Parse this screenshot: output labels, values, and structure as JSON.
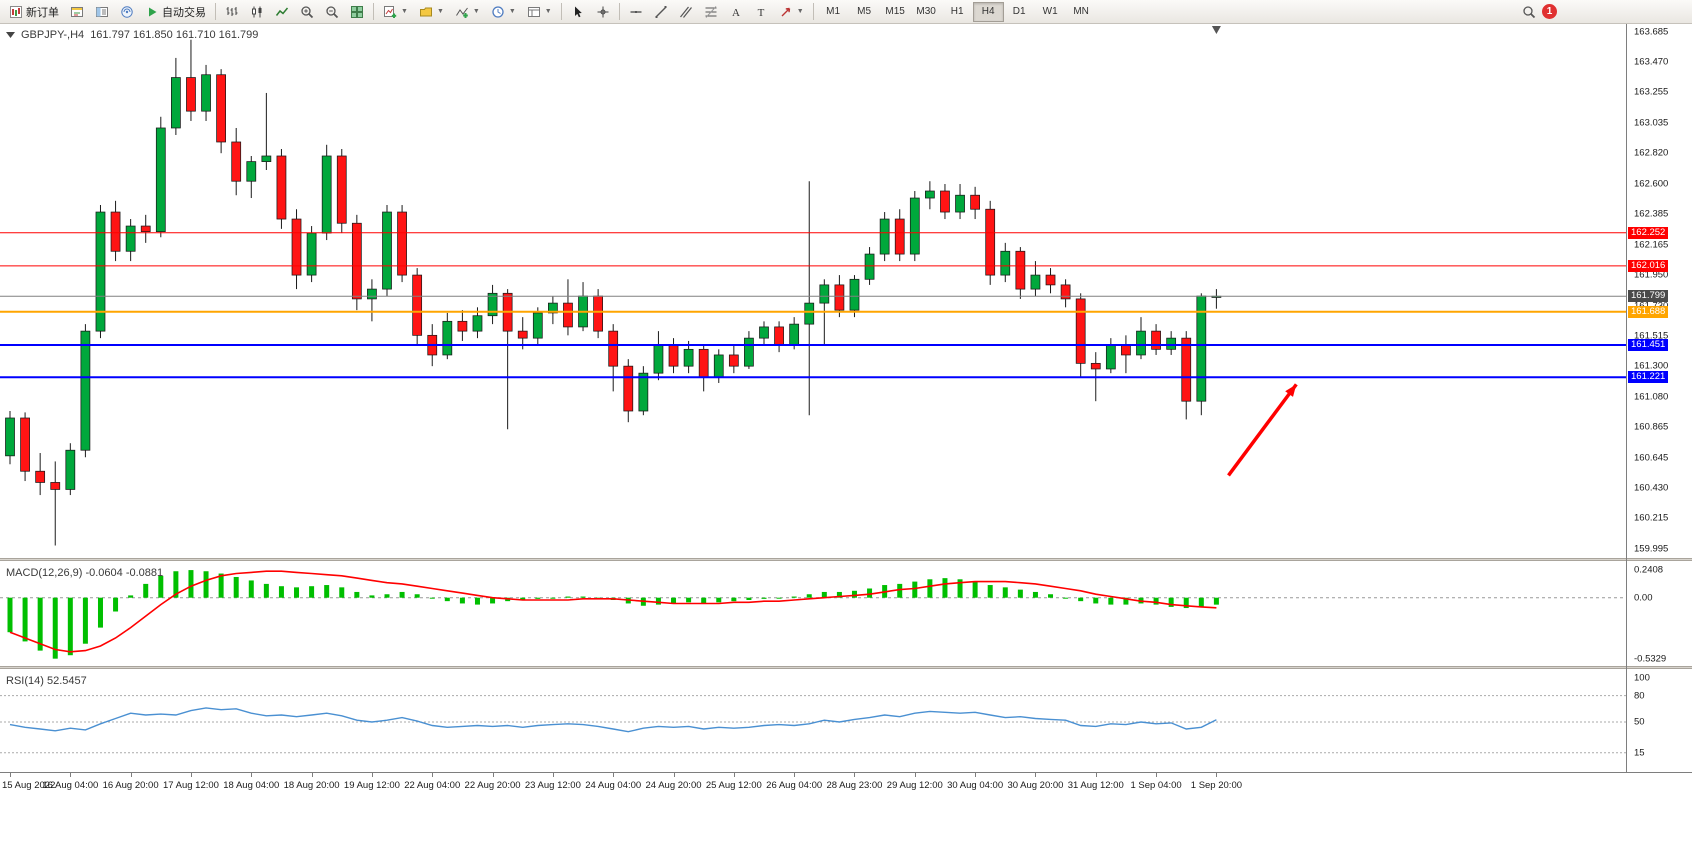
{
  "toolbar": {
    "new_order_label": "新订单",
    "auto_trading_label": "自动交易",
    "timeframes": [
      "M1",
      "M5",
      "M15",
      "M30",
      "H1",
      "H4",
      "D1",
      "W1",
      "MN"
    ],
    "active_timeframe": "H4",
    "notification_badge": "1"
  },
  "chart": {
    "symbol_period": "GBPJPY-,H4",
    "ohlc_text": "161.797 161.850 161.710 161.799",
    "macd_label": "MACD(12,26,9) -0.0604 -0.0881",
    "rsi_label": "RSI(14) 52.5457"
  },
  "chart_data": {
    "type": "candlestick",
    "symbol": "GBPJPY-",
    "period": "H4",
    "current_ohlc": {
      "open": 161.797,
      "high": 161.85,
      "low": 161.71,
      "close": 161.799
    },
    "price_axis": {
      "top_value": 163.685,
      "bottom_value": 159.995,
      "labels": [
        "163.685",
        "163.470",
        "163.255",
        "163.035",
        "162.820",
        "162.600",
        "162.385",
        "162.165",
        "161.950",
        "161.730",
        "161.515",
        "161.300",
        "161.080",
        "160.865",
        "160.645",
        "160.430",
        "160.215",
        "159.995"
      ]
    },
    "horizontal_lines": [
      {
        "name": "resistance-line-1",
        "price": 162.252,
        "label": "162.252",
        "color": "#ff0000",
        "width": 1,
        "tag_bg": "#ff0000"
      },
      {
        "name": "resistance-line-2",
        "price": 162.016,
        "label": "162.016",
        "color": "#ff0000",
        "width": 1,
        "tag_bg": "#ff0000"
      },
      {
        "name": "bid-price-line",
        "price": 161.799,
        "label": "161.799",
        "color": "#808080",
        "width": 1,
        "tag_bg": "#4a4a4a"
      },
      {
        "name": "pivot-line-orange",
        "price": 161.688,
        "label": "161.688",
        "color": "#ffa500",
        "width": 2,
        "tag_bg": "#ffa500"
      },
      {
        "name": "support-line-1",
        "price": 161.451,
        "label": "161.451",
        "color": "#0000ff",
        "width": 2,
        "tag_bg": "#0000ff"
      },
      {
        "name": "support-line-2",
        "price": 161.221,
        "label": "161.221",
        "color": "#0000ff",
        "width": 2,
        "tag_bg": "#0000ff"
      }
    ],
    "candles": [
      [
        160.66,
        160.98,
        160.6,
        160.93
      ],
      [
        160.93,
        160.97,
        160.48,
        160.55
      ],
      [
        160.55,
        160.68,
        160.38,
        160.47
      ],
      [
        160.47,
        160.62,
        160.02,
        160.42
      ],
      [
        160.42,
        160.75,
        160.38,
        160.7
      ],
      [
        160.7,
        161.6,
        160.65,
        161.55
      ],
      [
        161.55,
        162.45,
        161.5,
        162.4
      ],
      [
        162.4,
        162.48,
        162.05,
        162.12
      ],
      [
        162.12,
        162.35,
        162.05,
        162.3
      ],
      [
        162.3,
        162.38,
        162.18,
        162.26
      ],
      [
        162.26,
        163.08,
        162.22,
        163.0
      ],
      [
        163.0,
        163.5,
        162.95,
        163.36
      ],
      [
        163.36,
        163.63,
        163.05,
        163.12
      ],
      [
        163.12,
        163.45,
        163.05,
        163.38
      ],
      [
        163.38,
        163.42,
        162.82,
        162.9
      ],
      [
        162.9,
        163.0,
        162.52,
        162.62
      ],
      [
        162.62,
        162.8,
        162.5,
        162.76
      ],
      [
        162.76,
        163.25,
        162.7,
        162.8
      ],
      [
        162.8,
        162.85,
        162.28,
        162.35
      ],
      [
        162.35,
        162.42,
        161.85,
        161.95
      ],
      [
        161.95,
        162.3,
        161.9,
        162.25
      ],
      [
        162.25,
        162.88,
        162.2,
        162.8
      ],
      [
        162.8,
        162.85,
        162.25,
        162.32
      ],
      [
        162.32,
        162.38,
        161.7,
        161.78
      ],
      [
        161.78,
        161.92,
        161.62,
        161.85
      ],
      [
        161.85,
        162.45,
        161.8,
        162.4
      ],
      [
        162.4,
        162.45,
        161.9,
        161.95
      ],
      [
        161.95,
        162.0,
        161.45,
        161.52
      ],
      [
        161.52,
        161.6,
        161.3,
        161.38
      ],
      [
        161.38,
        161.68,
        161.35,
        161.62
      ],
      [
        161.62,
        161.7,
        161.48,
        161.55
      ],
      [
        161.55,
        161.72,
        161.5,
        161.66
      ],
      [
        161.66,
        161.88,
        161.6,
        161.82
      ],
      [
        161.82,
        161.85,
        160.85,
        161.55
      ],
      [
        161.55,
        161.65,
        161.42,
        161.5
      ],
      [
        161.5,
        161.72,
        161.45,
        161.68
      ],
      [
        161.68,
        161.8,
        161.6,
        161.75
      ],
      [
        161.75,
        161.92,
        161.52,
        161.58
      ],
      [
        161.58,
        161.9,
        161.55,
        161.8
      ],
      [
        161.8,
        161.85,
        161.5,
        161.55
      ],
      [
        161.55,
        161.6,
        161.12,
        161.3
      ],
      [
        161.3,
        161.35,
        160.9,
        160.98
      ],
      [
        160.98,
        161.3,
        160.95,
        161.25
      ],
      [
        161.25,
        161.55,
        161.2,
        161.45
      ],
      [
        161.45,
        161.5,
        161.25,
        161.3
      ],
      [
        161.3,
        161.48,
        161.25,
        161.42
      ],
      [
        161.42,
        161.45,
        161.12,
        161.22
      ],
      [
        161.22,
        161.42,
        161.18,
        161.38
      ],
      [
        161.38,
        161.45,
        161.25,
        161.3
      ],
      [
        161.3,
        161.55,
        161.28,
        161.5
      ],
      [
        161.5,
        161.62,
        161.45,
        161.58
      ],
      [
        161.58,
        161.62,
        161.4,
        161.45
      ],
      [
        161.45,
        161.65,
        161.42,
        161.6
      ],
      [
        161.6,
        162.62,
        160.95,
        161.75
      ],
      [
        161.75,
        161.92,
        161.45,
        161.88
      ],
      [
        161.88,
        161.95,
        161.65,
        161.7
      ],
      [
        161.7,
        161.95,
        161.65,
        161.92
      ],
      [
        161.92,
        162.15,
        161.88,
        162.1
      ],
      [
        162.1,
        162.4,
        162.05,
        162.35
      ],
      [
        162.35,
        162.42,
        162.05,
        162.1
      ],
      [
        162.1,
        162.55,
        162.05,
        162.5
      ],
      [
        162.5,
        162.62,
        162.42,
        162.55
      ],
      [
        162.55,
        162.6,
        162.35,
        162.4
      ],
      [
        162.4,
        162.6,
        162.35,
        162.52
      ],
      [
        162.52,
        162.58,
        162.35,
        162.42
      ],
      [
        162.42,
        162.48,
        161.88,
        161.95
      ],
      [
        161.95,
        162.18,
        161.9,
        162.12
      ],
      [
        162.12,
        162.15,
        161.78,
        161.85
      ],
      [
        161.85,
        162.05,
        161.8,
        161.95
      ],
      [
        161.95,
        162.0,
        161.82,
        161.88
      ],
      [
        161.88,
        161.92,
        161.72,
        161.78
      ],
      [
        161.78,
        161.82,
        161.22,
        161.32
      ],
      [
        161.32,
        161.4,
        161.05,
        161.28
      ],
      [
        161.28,
        161.5,
        161.25,
        161.45
      ],
      [
        161.45,
        161.52,
        161.25,
        161.38
      ],
      [
        161.38,
        161.65,
        161.35,
        161.55
      ],
      [
        161.55,
        161.6,
        161.38,
        161.42
      ],
      [
        161.42,
        161.55,
        161.38,
        161.5
      ],
      [
        161.5,
        161.55,
        160.92,
        161.05
      ],
      [
        161.05,
        161.82,
        160.95,
        161.8
      ],
      [
        161.797,
        161.85,
        161.71,
        161.799
      ]
    ],
    "time_labels": [
      "15 Aug 2022",
      "16 Aug 04:00",
      "16 Aug 20:00",
      "17 Aug 12:00",
      "18 Aug 04:00",
      "18 Aug 20:00",
      "19 Aug 12:00",
      "22 Aug 04:00",
      "22 Aug 20:00",
      "23 Aug 12:00",
      "24 Aug 04:00",
      "24 Aug 20:00",
      "25 Aug 12:00",
      "26 Aug 04:00",
      "28 Aug 23:00",
      "29 Aug 12:00",
      "30 Aug 04:00",
      "30 Aug 20:00",
      "31 Aug 12:00",
      "1 Sep 04:00",
      "1 Sep 20:00"
    ],
    "label_interval": 4,
    "shift_marker_slot": 80,
    "annotation_arrow": {
      "from": {
        "slot": 80.8,
        "price": 160.52
      },
      "to": {
        "slot": 85.3,
        "price": 161.17
      },
      "color": "#ff0000"
    },
    "indicators": {
      "macd": {
        "name": "MACD(12,26,9)",
        "value": -0.0604,
        "signal_value": -0.0881,
        "axis_labels": [
          "0.2408",
          "0.00",
          "-0.5329"
        ],
        "max": 0.2408,
        "min": -0.5329,
        "colors": {
          "histogram": "#00bf00",
          "signal": "#ff0000"
        },
        "histogram": [
          -0.3,
          -0.38,
          -0.46,
          -0.53,
          -0.5,
          -0.4,
          -0.26,
          -0.12,
          0.02,
          0.12,
          0.19,
          0.23,
          0.24,
          0.23,
          0.21,
          0.18,
          0.15,
          0.12,
          0.1,
          0.09,
          0.1,
          0.11,
          0.09,
          0.05,
          0.02,
          0.03,
          0.05,
          0.03,
          0.0,
          -0.03,
          -0.05,
          -0.06,
          -0.05,
          -0.03,
          -0.02,
          -0.01,
          0.0,
          0.01,
          0.01,
          0.0,
          -0.02,
          -0.05,
          -0.07,
          -0.06,
          -0.05,
          -0.04,
          -0.05,
          -0.04,
          -0.03,
          -0.02,
          -0.01,
          0.0,
          0.01,
          0.03,
          0.05,
          0.05,
          0.06,
          0.08,
          0.11,
          0.12,
          0.14,
          0.16,
          0.17,
          0.16,
          0.14,
          0.11,
          0.09,
          0.07,
          0.05,
          0.03,
          0.0,
          -0.03,
          -0.05,
          -0.06,
          -0.06,
          -0.05,
          -0.06,
          -0.08,
          -0.09,
          -0.08,
          -0.0604
        ],
        "signal": [
          -0.3,
          -0.35,
          -0.4,
          -0.45,
          -0.47,
          -0.46,
          -0.42,
          -0.35,
          -0.26,
          -0.16,
          -0.06,
          0.03,
          0.1,
          0.15,
          0.19,
          0.21,
          0.22,
          0.23,
          0.23,
          0.22,
          0.21,
          0.2,
          0.19,
          0.17,
          0.15,
          0.13,
          0.12,
          0.1,
          0.08,
          0.06,
          0.04,
          0.02,
          0.0,
          -0.01,
          -0.02,
          -0.02,
          -0.02,
          -0.02,
          -0.01,
          -0.01,
          -0.01,
          -0.02,
          -0.03,
          -0.04,
          -0.05,
          -0.05,
          -0.05,
          -0.05,
          -0.04,
          -0.04,
          -0.03,
          -0.03,
          -0.02,
          -0.01,
          0.0,
          0.01,
          0.02,
          0.03,
          0.05,
          0.07,
          0.08,
          0.1,
          0.12,
          0.13,
          0.14,
          0.14,
          0.14,
          0.13,
          0.12,
          0.1,
          0.08,
          0.06,
          0.03,
          0.01,
          -0.01,
          -0.03,
          -0.04,
          -0.06,
          -0.07,
          -0.08,
          -0.0881
        ]
      },
      "rsi": {
        "name": "RSI(14)",
        "value": 52.5457,
        "axis_labels": [
          "100",
          "80",
          "50",
          "15"
        ],
        "levels": [
          80,
          50,
          15
        ],
        "max": 100,
        "min": 0,
        "color": "#4a90d2",
        "values": [
          47,
          44,
          42,
          40,
          43,
          41,
          48,
          54,
          60,
          58,
          59,
          58,
          63,
          66,
          64,
          65,
          60,
          57,
          58,
          56,
          58,
          60,
          57,
          52,
          50,
          52,
          55,
          51,
          46,
          44,
          45,
          46,
          45,
          46,
          44,
          46,
          47,
          48,
          47,
          45,
          42,
          39,
          43,
          45,
          44,
          45,
          42,
          44,
          43,
          44,
          46,
          47,
          46,
          48,
          52,
          50,
          53,
          55,
          58,
          56,
          60,
          62,
          61,
          60,
          61,
          58,
          55,
          56,
          54,
          53,
          52,
          46,
          45,
          48,
          47,
          50,
          48,
          49,
          42,
          44,
          52.5
        ]
      }
    },
    "colors": {
      "up": "#00a83c",
      "down": "#ff1414",
      "wick": "#1a1a1a",
      "background": "#ffffff"
    }
  }
}
